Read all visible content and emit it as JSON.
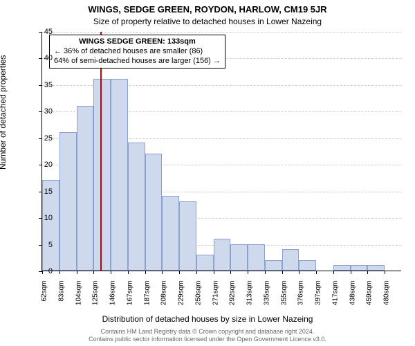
{
  "title": "WINGS, SEDGE GREEN, ROYDON, HARLOW, CM19 5JR",
  "subtitle": "Size of property relative to detached houses in Lower Nazeing",
  "ylabel": "Number of detached properties",
  "xlabel": "Distribution of detached houses by size in Lower Nazeing",
  "chart": {
    "type": "histogram",
    "ylim": [
      0,
      45
    ],
    "ytick_step": 5,
    "background_color": "#ffffff",
    "grid_color": "#cccccc",
    "bar_fill_color": "#cfd9ee",
    "bar_border_color": "#8aa0d1",
    "marker_color": "#cc0000",
    "tick_fontsize": 11,
    "xtick_fontsize": 10,
    "label_fontsize": 12,
    "title_fontsize": 13,
    "categories": [
      "62sqm",
      "83sqm",
      "104sqm",
      "125sqm",
      "146sqm",
      "167sqm",
      "187sqm",
      "208sqm",
      "229sqm",
      "250sqm",
      "271sqm",
      "292sqm",
      "313sqm",
      "335sqm",
      "355sqm",
      "376sqm",
      "397sqm",
      "417sqm",
      "438sqm",
      "459sqm",
      "480sqm"
    ],
    "values": [
      17,
      26,
      31,
      36,
      36,
      24,
      22,
      14,
      13,
      3,
      6,
      5,
      5,
      2,
      4,
      2,
      0,
      1,
      1,
      1,
      0
    ],
    "marker_sqm": 133,
    "x_start_sqm": 62,
    "x_step_sqm": 21,
    "yticks": [
      0,
      5,
      10,
      15,
      20,
      25,
      30,
      35,
      40,
      45
    ]
  },
  "annotation": {
    "line1": "WINGS SEDGE GREEN: 133sqm",
    "line2": "← 36% of detached houses are smaller (86)",
    "line3": "64% of semi-detached houses are larger (156) →"
  },
  "footer": {
    "line1": "Contains HM Land Registry data © Crown copyright and database right 2024.",
    "line2": "Contains public sector information licensed under the Open Government Licence v3.0."
  }
}
